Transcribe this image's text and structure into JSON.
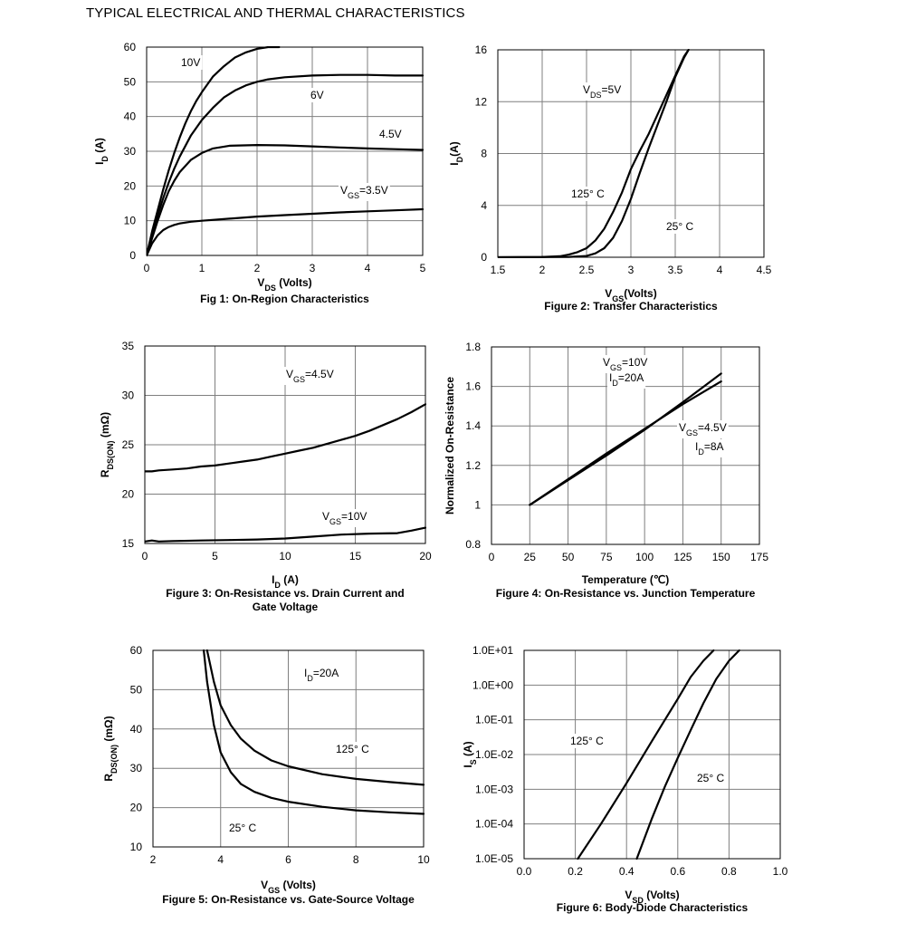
{
  "page_title": "TYPICAL ELECTRICAL AND THERMAL CHARACTERISTICS",
  "chart_data": [
    {
      "id": "fig1",
      "type": "line",
      "caption": "Fig 1: On-Region Characteristics",
      "xlabel": "V|DS| (Volts)",
      "ylabel": "I|D| (A)",
      "xlim": [
        0,
        5
      ],
      "ylim": [
        0,
        60
      ],
      "xticks": [
        "0",
        "1",
        "2",
        "3",
        "4",
        "5"
      ],
      "yticks": [
        "0",
        "10",
        "20",
        "30",
        "40",
        "50",
        "60"
      ],
      "grid": true,
      "series": [
        {
          "name": "10V",
          "x": [
            0,
            0.1,
            0.2,
            0.3,
            0.4,
            0.5,
            0.6,
            0.7,
            0.8,
            0.9,
            1.0,
            1.2,
            1.4,
            1.6,
            1.8,
            2.0,
            2.2,
            2.4
          ],
          "y": [
            0,
            7,
            13,
            19,
            24.5,
            29.5,
            34,
            38,
            41.5,
            44.5,
            47,
            51.5,
            54.5,
            57,
            58.5,
            59.5,
            60,
            60
          ]
        },
        {
          "name": "6V",
          "x": [
            0,
            0.1,
            0.2,
            0.3,
            0.4,
            0.5,
            0.6,
            0.8,
            1.0,
            1.2,
            1.4,
            1.6,
            1.8,
            2.0,
            2.2,
            2.5,
            3.0,
            3.5,
            4.0,
            4.5,
            5.0
          ],
          "y": [
            0,
            6,
            11.5,
            16.5,
            21,
            25,
            28.5,
            34.5,
            39,
            42.5,
            45.5,
            47.5,
            49,
            50,
            50.7,
            51.3,
            51.8,
            52,
            52,
            51.8,
            51.8
          ]
        },
        {
          "name": "4.5V",
          "x": [
            0,
            0.1,
            0.2,
            0.3,
            0.4,
            0.5,
            0.6,
            0.8,
            1.0,
            1.2,
            1.5,
            2.0,
            2.5,
            3.0,
            3.5,
            4.0,
            4.5,
            5.0
          ],
          "y": [
            0,
            5,
            10,
            14.5,
            18.5,
            21.5,
            24,
            27.5,
            29.5,
            30.8,
            31.6,
            31.8,
            31.7,
            31.4,
            31.1,
            30.8,
            30.6,
            30.4
          ]
        },
        {
          "name": "V|GS|=3.5V",
          "x": [
            0,
            0.1,
            0.2,
            0.3,
            0.4,
            0.5,
            0.6,
            0.8,
            1.0,
            1.5,
            2.0,
            2.5,
            3.0,
            3.5,
            4.0,
            4.5,
            5.0
          ],
          "y": [
            0,
            3.5,
            5.8,
            7.3,
            8.2,
            8.8,
            9.2,
            9.7,
            10,
            10.6,
            11.2,
            11.6,
            12,
            12.4,
            12.7,
            13,
            13.3
          ]
        }
      ],
      "annotations": [
        "10V",
        "6V",
        "4.5V",
        "V|GS|=3.5V"
      ]
    },
    {
      "id": "fig2",
      "type": "line",
      "caption": "Figure 2: Transfer Characteristics",
      "xlabel": "V|GS|(Volts)",
      "ylabel": "I|D|(A)",
      "xlim": [
        1.5,
        4.5
      ],
      "ylim": [
        0,
        16
      ],
      "xticks": [
        "1.5",
        "2",
        "2.5",
        "3",
        "3.5",
        "4",
        "4.5"
      ],
      "yticks": [
        "0",
        "4",
        "8",
        "12",
        "16"
      ],
      "grid": true,
      "series": [
        {
          "name": "125° C",
          "x": [
            1.5,
            2.0,
            2.2,
            2.3,
            2.4,
            2.5,
            2.6,
            2.7,
            2.8,
            2.9,
            3.0,
            3.1,
            3.2,
            3.3,
            3.4,
            3.5,
            3.6,
            3.65
          ],
          "y": [
            0,
            0.02,
            0.08,
            0.2,
            0.4,
            0.7,
            1.3,
            2.2,
            3.5,
            5,
            6.8,
            8.2,
            9.5,
            11,
            12.5,
            14,
            15.5,
            16
          ]
        },
        {
          "name": "25° C",
          "x": [
            1.5,
            2.3,
            2.5,
            2.6,
            2.7,
            2.8,
            2.9,
            3.0,
            3.1,
            3.2,
            3.3,
            3.4,
            3.5,
            3.6,
            3.65
          ],
          "y": [
            0,
            0.02,
            0.1,
            0.3,
            0.7,
            1.5,
            2.8,
            4.5,
            6.5,
            8.4,
            10.2,
            12,
            13.9,
            15.4,
            16
          ]
        }
      ],
      "annotations": [
        "V|DS|=5V",
        "125° C",
        "25° C"
      ]
    },
    {
      "id": "fig3",
      "type": "line",
      "caption": "Figure 3: On-Resistance vs. Drain Current and|Gate Voltage",
      "xlabel": "I|D| (A)",
      "ylabel": "R|DS(ON)| (mΩ)",
      "xlim": [
        0,
        20
      ],
      "ylim": [
        15,
        35
      ],
      "xticks": [
        "0",
        "5",
        "10",
        "15",
        "20"
      ],
      "yticks": [
        "15",
        "20",
        "25",
        "30",
        "35"
      ],
      "grid": true,
      "series": [
        {
          "name": "V|GS|=4.5V",
          "x": [
            0,
            0.5,
            1,
            2,
            3,
            4,
            5,
            6,
            7,
            8,
            9,
            10,
            11,
            12,
            13,
            14,
            15,
            16,
            17,
            18,
            19,
            20
          ],
          "y": [
            22.3,
            22.3,
            22.4,
            22.5,
            22.6,
            22.8,
            22.9,
            23.1,
            23.3,
            23.5,
            23.8,
            24.1,
            24.4,
            24.7,
            25.1,
            25.5,
            25.9,
            26.4,
            27,
            27.6,
            28.3,
            29.1
          ]
        },
        {
          "name": "V|GS|=10V",
          "x": [
            0,
            0.5,
            1,
            2,
            4,
            6,
            8,
            10,
            12,
            14,
            16,
            18,
            19,
            20
          ],
          "y": [
            15.2,
            15.3,
            15.2,
            15.25,
            15.3,
            15.35,
            15.4,
            15.5,
            15.7,
            15.9,
            16,
            16.05,
            16.3,
            16.6
          ]
        }
      ],
      "annotations": [
        "V|GS|=4.5V",
        "V|GS|=10V"
      ]
    },
    {
      "id": "fig4",
      "type": "line",
      "caption": "Figure 4: On-Resistance vs. Junction Temperature",
      "xlabel": "Temperature (℃)",
      "ylabel": "Normalized On-Resistance",
      "xlim": [
        0,
        175
      ],
      "ylim": [
        0.8,
        1.8
      ],
      "xticks": [
        "0",
        "25",
        "50",
        "75",
        "100",
        "125",
        "150",
        "175"
      ],
      "yticks": [
        "0.8",
        "1",
        "1.2",
        "1.4",
        "1.6",
        "1.8"
      ],
      "grid": true,
      "series": [
        {
          "name": "V|GS|=10V",
          "x": [
            25,
            50,
            75,
            100,
            125,
            150
          ],
          "y": [
            1.0,
            1.125,
            1.25,
            1.38,
            1.52,
            1.665
          ]
        },
        {
          "name": "V|GS|=4.5V",
          "x": [
            25,
            50,
            75,
            100,
            125,
            150
          ],
          "y": [
            1.0,
            1.13,
            1.26,
            1.385,
            1.51,
            1.625
          ]
        }
      ],
      "annotations": [
        "V|GS|=10V",
        "I|D|=20A",
        "V|GS|=4.5V",
        "I|D|=8A"
      ]
    },
    {
      "id": "fig5",
      "type": "line",
      "caption": "Figure 5: On-Resistance vs. Gate-Source Voltage",
      "xlabel": "V|GS| (Volts)",
      "ylabel": "R|DS(ON)| (mΩ)",
      "xlim": [
        2,
        10
      ],
      "ylim": [
        10,
        60
      ],
      "xticks": [
        "2",
        "4",
        "6",
        "8",
        "10"
      ],
      "yticks": [
        "10",
        "20",
        "30",
        "40",
        "50",
        "60"
      ],
      "grid": true,
      "series": [
        {
          "name": "125° C",
          "x": [
            3.6,
            3.8,
            4.0,
            4.3,
            4.6,
            5.0,
            5.5,
            6.0,
            7.0,
            8.0,
            9.0,
            10.0
          ],
          "y": [
            60,
            52,
            46,
            41,
            37.5,
            34.5,
            32,
            30.5,
            28.5,
            27.3,
            26.5,
            25.8
          ]
        },
        {
          "name": "25° C",
          "x": [
            3.5,
            3.6,
            3.8,
            4.0,
            4.3,
            4.6,
            5.0,
            5.5,
            6.0,
            7.0,
            8.0,
            9.0,
            10.0
          ],
          "y": [
            60,
            52,
            41,
            34,
            29,
            26,
            24,
            22.5,
            21.5,
            20.2,
            19.3,
            18.8,
            18.4
          ]
        }
      ],
      "annotations": [
        "I|D|=20A",
        "125° C",
        "25° C"
      ]
    },
    {
      "id": "fig6",
      "type": "line",
      "caption": "Figure 6: Body-Diode Characteristics",
      "xlabel": "V|SD| (Volts)",
      "ylabel": "I|S| (A)",
      "xlim": [
        0,
        1.0
      ],
      "ylim": [
        1e-05,
        10
      ],
      "yscale": "log",
      "xticks": [
        "0.0",
        "0.2",
        "0.4",
        "0.6",
        "0.8",
        "1.0"
      ],
      "yticks": [
        "1.0E-05",
        "1.0E-04",
        "1.0E-03",
        "1.0E-02",
        "1.0E-01",
        "1.0E+00",
        "1.0E+01"
      ],
      "grid": true,
      "series": [
        {
          "name": "125° C",
          "x": [
            0.21,
            0.3,
            0.4,
            0.5,
            0.55,
            0.6,
            0.65,
            0.7,
            0.74
          ],
          "y": [
            1e-05,
            0.0001,
            0.0015,
            0.025,
            0.1,
            0.4,
            1.7,
            5,
            10
          ]
        },
        {
          "name": "25° C",
          "x": [
            0.44,
            0.5,
            0.55,
            0.6,
            0.65,
            0.7,
            0.75,
            0.8,
            0.84
          ],
          "y": [
            1e-05,
            0.00015,
            0.0012,
            0.008,
            0.05,
            0.3,
            1.5,
            5,
            10
          ]
        }
      ],
      "annotations": [
        "125° C",
        "25° C"
      ]
    }
  ]
}
